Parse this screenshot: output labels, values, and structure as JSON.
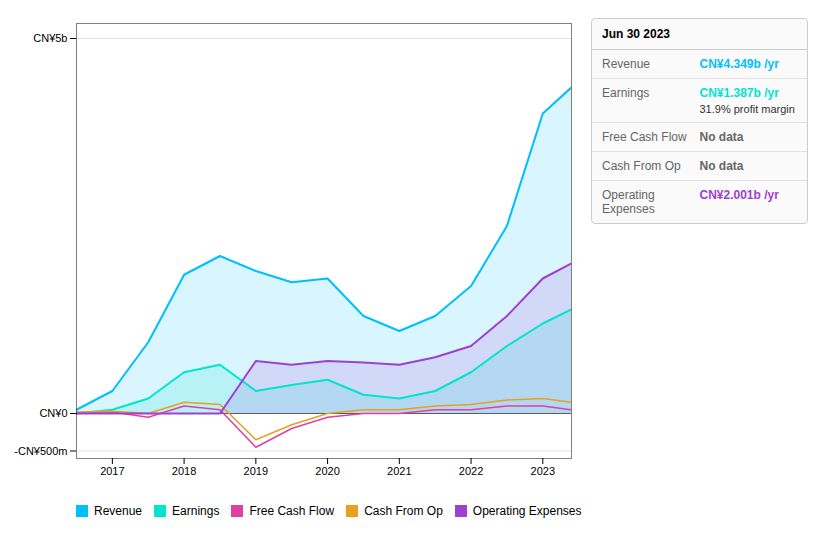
{
  "chart_data": {
    "type": "area",
    "x": [
      2016.5,
      2017,
      2017.5,
      2018,
      2018.5,
      2019,
      2019.5,
      2020,
      2020.5,
      2021,
      2021.5,
      2022,
      2022.5,
      2023,
      2023.4
    ],
    "series": [
      {
        "name": "Revenue",
        "color": "#00bfff",
        "type": "area",
        "values": [
          0.05,
          0.3,
          0.95,
          1.85,
          2.1,
          1.9,
          1.75,
          1.8,
          1.3,
          1.1,
          1.3,
          1.7,
          2.5,
          4.0,
          4.349
        ]
      },
      {
        "name": "Earnings",
        "color": "#00e5cc",
        "type": "area",
        "values": [
          0.0,
          0.05,
          0.2,
          0.55,
          0.65,
          0.3,
          0.38,
          0.45,
          0.25,
          0.2,
          0.3,
          0.55,
          0.9,
          1.2,
          1.387
        ]
      },
      {
        "name": "Free Cash Flow",
        "color": "#e040a0",
        "type": "line",
        "values": [
          0.01,
          0.02,
          -0.05,
          0.1,
          0.05,
          -0.45,
          -0.2,
          -0.05,
          0.0,
          0.0,
          0.05,
          0.05,
          0.1,
          0.1,
          0.05
        ]
      },
      {
        "name": "Cash From Op",
        "color": "#e8a020",
        "type": "line",
        "values": [
          0.02,
          0.03,
          0.0,
          0.15,
          0.12,
          -0.35,
          -0.15,
          0.0,
          0.05,
          0.05,
          0.1,
          0.12,
          0.18,
          0.2,
          0.15
        ]
      },
      {
        "name": "Operating Expenses",
        "color": "#a040d0",
        "type": "area",
        "values": [
          0.0,
          0.0,
          0.0,
          0.0,
          0.0,
          0.7,
          0.65,
          0.7,
          0.68,
          0.65,
          0.75,
          0.9,
          1.3,
          1.8,
          2.001
        ]
      }
    ],
    "xlim": [
      2016.5,
      2023.4
    ],
    "xticks": [
      2017,
      2018,
      2019,
      2020,
      2021,
      2022,
      2023
    ],
    "ylim": [
      -0.6,
      5.2
    ],
    "yticks": [
      {
        "value": -0.5,
        "label": "-CN¥500m"
      },
      {
        "value": 0,
        "label": "CN¥0"
      },
      {
        "value": 5.0,
        "label": "CN¥5b"
      }
    ],
    "grid": "y",
    "legend": "bottom",
    "annotations": [
      {
        "title": "Jun 30 2023",
        "rows": [
          {
            "label": "Revenue",
            "value": "CN¥4.349b /yr",
            "color": "#00bfff"
          },
          {
            "label": "Earnings",
            "value": "CN¥1.387b /yr",
            "color": "#00e5cc",
            "sub": "31.9% profit margin"
          },
          {
            "label": "Free Cash Flow",
            "value": "No data",
            "color": "#666666"
          },
          {
            "label": "Cash From Op",
            "value": "No data",
            "color": "#666666"
          },
          {
            "label": "Operating Expenses",
            "value": "CN¥2.001b /yr",
            "color": "#a040d0"
          }
        ]
      }
    ]
  }
}
